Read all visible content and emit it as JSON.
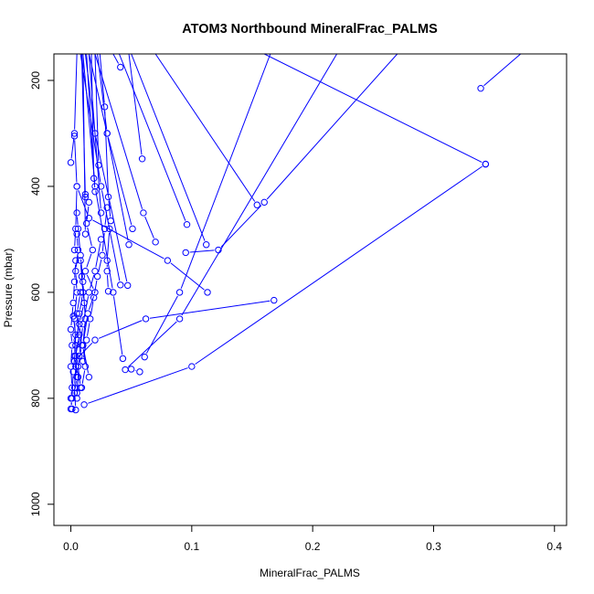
{
  "chart_data": {
    "type": "line",
    "title": "ATOM3 Northbound MineralFrac_PALMS",
    "xlabel": "MineralFrac_PALMS",
    "ylabel": "Pressure (mbar)",
    "xlim": [
      -0.014,
      0.41
    ],
    "ylim": [
      1040,
      150
    ],
    "y_reversed": true,
    "xticks": [
      0.0,
      0.1,
      0.2,
      0.3,
      0.4
    ],
    "xtick_labels": [
      "0.0",
      "0.1",
      "0.2",
      "0.3",
      "0.4"
    ],
    "yticks": [
      200,
      400,
      600,
      800,
      1000
    ],
    "ytick_labels": [
      "200",
      "400",
      "600",
      "800",
      "1000"
    ],
    "grid": false,
    "color": "#0000ff",
    "marker": "open-circle",
    "series": [
      {
        "points": [
          [
            0.339,
            215
          ],
          [
            0.372,
            150
          ]
        ]
      },
      {
        "points": [
          [
            0.343,
            358
          ],
          [
            0.16,
            150
          ]
        ]
      },
      {
        "points": [
          [
            0.154,
            435
          ],
          [
            0.07,
            150
          ]
        ]
      },
      {
        "points": [
          [
            0.168,
            615
          ],
          [
            0.062,
            650
          ],
          [
            0.02,
            690
          ],
          [
            0.003,
            730
          ]
        ]
      },
      {
        "points": [
          [
            0.011,
            812
          ],
          [
            0.1,
            740
          ],
          [
            0.343,
            358
          ]
        ]
      },
      {
        "points": [
          [
            0.096,
            472
          ],
          [
            0.04,
            150
          ]
        ]
      },
      {
        "points": [
          [
            0.095,
            525
          ],
          [
            0.122,
            520
          ],
          [
            0.16,
            430
          ],
          [
            0.27,
            150
          ]
        ]
      },
      {
        "points": [
          [
            0.112,
            510
          ],
          [
            0.05,
            150
          ]
        ]
      },
      {
        "points": [
          [
            0.113,
            600
          ],
          [
            0.08,
            540
          ],
          [
            0.015,
            460
          ],
          [
            0.005,
            400
          ]
        ]
      },
      {
        "points": [
          [
            0.061,
            722
          ],
          [
            0.09,
            600
          ],
          [
            0.165,
            150
          ]
        ]
      },
      {
        "points": [
          [
            0.045,
            746
          ],
          [
            0.09,
            650
          ],
          [
            0.22,
            150
          ]
        ]
      },
      {
        "points": [
          [
            0.057,
            750
          ],
          [
            0.05,
            745
          ]
        ]
      },
      {
        "points": [
          [
            0.043,
            725
          ],
          [
            0.035,
            600
          ],
          [
            0.02,
            400
          ],
          [
            0.01,
            150
          ]
        ]
      },
      {
        "points": [
          [
            0.07,
            505
          ],
          [
            0.06,
            450
          ],
          [
            0.02,
            150
          ]
        ]
      },
      {
        "points": [
          [
            0.051,
            480
          ],
          [
            0.03,
            300
          ],
          [
            0.022,
            150
          ]
        ]
      },
      {
        "points": [
          [
            0.059,
            348
          ],
          [
            0.048,
            150
          ]
        ]
      },
      {
        "points": [
          [
            0.041,
            175
          ],
          [
            0.035,
            150
          ]
        ]
      },
      {
        "points": [
          [
            0.048,
            510
          ],
          [
            0.03,
            300
          ],
          [
            0.015,
            150
          ]
        ]
      },
      {
        "points": [
          [
            0.047,
            587
          ],
          [
            0.02,
            300
          ],
          [
            0.012,
            150
          ]
        ]
      },
      {
        "points": [
          [
            0.041,
            586
          ],
          [
            0.025,
            400
          ],
          [
            0.008,
            150
          ]
        ]
      },
      {
        "points": [
          [
            0.031,
            598
          ],
          [
            0.03,
            560
          ],
          [
            0.03,
            540
          ],
          [
            0.032,
            480
          ],
          [
            0.033,
            465
          ],
          [
            0.031,
            420
          ],
          [
            0.028,
            250
          ],
          [
            0.024,
            150
          ]
        ]
      },
      {
        "points": [
          [
            0.023,
            360
          ],
          [
            0.02,
            150
          ]
        ]
      },
      {
        "points": [
          [
            0.019,
            385
          ],
          [
            0.017,
            150
          ]
        ]
      },
      {
        "points": [
          [
            0.025,
            450
          ],
          [
            0.015,
            150
          ]
        ]
      },
      {
        "points": [
          [
            0.02,
            410
          ],
          [
            0.013,
            150
          ]
        ]
      },
      {
        "points": [
          [
            0.012,
            490
          ],
          [
            0.01,
            150
          ]
        ]
      },
      {
        "points": [
          [
            0.012,
            415
          ],
          [
            0.012,
            420
          ],
          [
            0.009,
            150
          ]
        ]
      },
      {
        "points": [
          [
            0.015,
            430
          ],
          [
            0.013,
            470
          ],
          [
            0.018,
            520
          ],
          [
            0.012,
            560
          ],
          [
            0.02,
            600
          ],
          [
            0.014,
            640
          ],
          [
            0.01,
            700
          ],
          [
            0.012,
            740
          ],
          [
            0.009,
            780
          ]
        ]
      },
      {
        "points": [
          [
            0.025,
            500
          ],
          [
            0.02,
            560
          ],
          [
            0.015,
            600
          ],
          [
            0.01,
            660
          ],
          [
            0.007,
            720
          ],
          [
            0.005,
            800
          ]
        ]
      },
      {
        "points": [
          [
            0.005,
            490
          ],
          [
            0.006,
            520
          ],
          [
            0.004,
            560
          ],
          [
            0.005,
            600
          ],
          [
            0.003,
            650
          ],
          [
            0.004,
            700
          ],
          [
            0.002,
            750
          ],
          [
            0.001,
            800
          ],
          [
            0.0,
            820
          ]
        ]
      },
      {
        "points": [
          [
            0.004,
            540
          ],
          [
            0.003,
            580
          ],
          [
            0.002,
            620
          ],
          [
            0.0,
            670
          ],
          [
            0.001,
            700
          ],
          [
            0.0,
            740
          ],
          [
            0.001,
            780
          ],
          [
            0.0,
            800
          ],
          [
            0.001,
            820
          ]
        ]
      },
      {
        "points": [
          [
            0.003,
            305
          ],
          [
            0.005,
            400
          ],
          [
            0.004,
            480
          ],
          [
            0.003,
            520
          ]
        ]
      },
      {
        "points": [
          [
            0.0,
            355
          ],
          [
            0.003,
            300
          ],
          [
            0.005,
            150
          ]
        ]
      },
      {
        "points": [
          [
            0.008,
            540
          ],
          [
            0.01,
            600
          ],
          [
            0.007,
            640
          ],
          [
            0.005,
            690
          ],
          [
            0.004,
            740
          ],
          [
            0.003,
            780
          ],
          [
            0.004,
            822
          ]
        ]
      },
      {
        "points": [
          [
            0.002,
            645
          ],
          [
            0.004,
            680
          ],
          [
            0.003,
            720
          ],
          [
            0.006,
            760
          ],
          [
            0.005,
            790
          ]
        ]
      },
      {
        "points": [
          [
            0.015,
            760
          ],
          [
            0.01,
            700
          ],
          [
            0.012,
            650
          ],
          [
            0.01,
            580
          ],
          [
            0.008,
            530
          ],
          [
            0.006,
            480
          ],
          [
            0.005,
            450
          ]
        ]
      },
      {
        "points": [
          [
            0.008,
            780
          ],
          [
            0.006,
            740
          ],
          [
            0.009,
            700
          ],
          [
            0.007,
            660
          ],
          [
            0.011,
            620
          ],
          [
            0.009,
            570
          ]
        ]
      },
      {
        "points": [
          [
            0.01,
            730
          ],
          [
            0.013,
            690
          ],
          [
            0.016,
            650
          ],
          [
            0.019,
            610
          ],
          [
            0.022,
            570
          ],
          [
            0.026,
            530
          ],
          [
            0.028,
            480
          ],
          [
            0.03,
            440
          ]
        ]
      },
      {
        "points": [
          [
            0.003,
            790
          ],
          [
            0.005,
            760
          ],
          [
            0.004,
            720
          ],
          [
            0.007,
            680
          ],
          [
            0.005,
            640
          ],
          [
            0.008,
            600
          ]
        ]
      }
    ]
  }
}
